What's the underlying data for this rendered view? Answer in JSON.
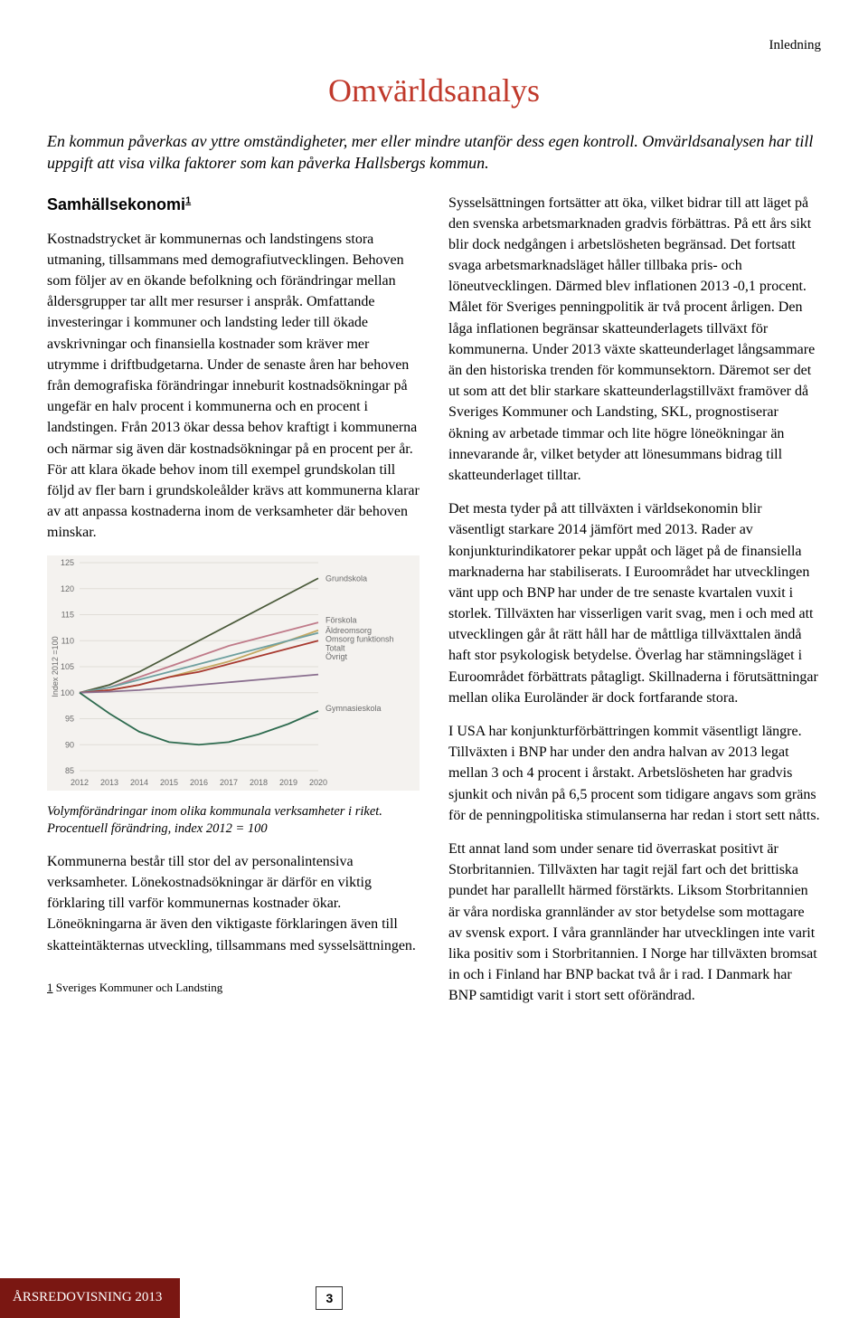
{
  "running_head": "Inledning",
  "title": "Omvärldsanalys",
  "title_color": "#c0392b",
  "lede": "En kommun påverkas av yttre omständigheter, mer eller mindre utanför dess egen kontroll. Omvärldsanalysen har till uppgift att visa vilka faktorer som kan påverka Hallsbergs kommun.",
  "section_heading": "Samhällsekonomi",
  "section_heading_super": "1",
  "left_paragraphs": [
    "Kostnadstrycket är kommunernas och landstingens stora utmaning, tillsammans med demografiutvecklingen. Behoven som följer av en ökande befolkning och förändringar mellan åldersgrupper tar allt mer resurser i anspråk. Omfattande investeringar i kommuner och landsting leder till ökade avskrivningar och finansiella kostnader som kräver mer utrymme i driftbudgetarna. Under de senaste åren har behoven från demografiska förändringar inneburit kostnadsökningar på ungefär en halv procent i kommunerna och en procent i landstingen. Från 2013 ökar dessa behov kraftigt i kommunerna och närmar sig även där kostnadsökningar på en procent per år. För att klara ökade behov inom till exempel grundskolan till följd av fler barn i grundskoleålder krävs att kommunerna klarar av att anpassa kostnaderna inom de verksamheter där behoven minskar."
  ],
  "chart_caption": "Volymförändringar inom olika kommunala verksamheter i riket. Procentuell förändring, index 2012 = 100",
  "left_paragraphs_after": [
    "Kommunerna består till stor del av personalintensiva verksamheter. Lönekostnadsökningar är därför en viktig förklaring till varför kommunernas kostnader ökar. Löneökningarna är även den viktigaste förklaringen även till skatteintäkternas utveckling, tillsammans med sysselsättningen."
  ],
  "right_paragraphs": [
    "Sysselsättningen fortsätter att öka, vilket bidrar till att läget på den svenska arbetsmarknaden gradvis förbättras. På ett års sikt blir dock nedgången i arbetslösheten begränsad. Det fortsatt svaga arbetsmarknadsläget håller tillbaka pris- och löneutvecklingen. Därmed blev inflationen 2013 -0,1 procent. Målet för Sveriges penningpolitik är två procent årligen. Den låga inflationen begränsar skatteunderlagets tillväxt för kommunerna. Under 2013 växte skatteunderlaget långsammare än den historiska trenden för kommunsektorn. Däremot ser det ut som att det blir starkare skatteunderlagstillväxt framöver då Sveriges Kommuner och Landsting, SKL, prognostiserar ökning av arbetade timmar och lite högre löneökningar än innevarande år, vilket betyder att lönesummans bidrag till skatteunderlaget tilltar.",
    "Det mesta tyder på att tillväxten i världsekonomin blir väsentligt starkare 2014 jämfört med 2013. Rader av konjunkturindikatorer pekar uppåt och läget på de finansiella marknaderna har stabiliserats. I Euroområdet har utvecklingen vänt upp och BNP har under de tre senaste kvartalen vuxit i storlek. Tillväxten har visserligen varit svag, men i och med att utvecklingen går åt rätt håll har de måttliga tillväxttalen ändå haft stor psykologisk betydelse. Överlag har stämningsläget i Euroområdet förbättrats påtagligt. Skillnaderna i förutsättningar mellan olika Euroländer är dock fortfarande stora.",
    "I USA har konjunkturförbättringen kommit väsentligt längre. Tillväxten i BNP har under den andra halvan av 2013 legat mellan 3 och 4 procent i årstakt. Arbetslösheten har gradvis sjunkit och nivån på 6,5 procent som tidigare angavs som gräns för de penningpolitiska stimulanserna har redan i stort sett nåtts.",
    "Ett annat land som under senare tid överraskat positivt är Storbritannien. Tillväxten har tagit rejäl fart och det brittiska pundet har parallellt härmed förstärkts. Liksom Storbritannien är våra nordiska grannländer av stor betydelse som mottagare av svensk export. I våra grannländer har utvecklingen inte varit lika positiv som i Storbritannien. I Norge har tillväxten bromsat in och i Finland har BNP backat två år i rad. I Danmark har BNP samtidigt varit i stort sett oförändrad."
  ],
  "footnote_num": "1",
  "footnote_text": "Sveriges Kommuner och Landsting",
  "footer_label": "ÅRSREDOVISNING 2013",
  "footer_bg": "#7a1712",
  "page_number": "3",
  "chart": {
    "type": "line",
    "background_color": "#f4f2ef",
    "grid_color": "#e0ddd7",
    "text_color": "#6b6b6b",
    "y_axis_label": "Index 2012 =100",
    "label_fontsize": 9,
    "tick_fontsize": 9,
    "x_categories": [
      "2012",
      "2013",
      "2014",
      "2015",
      "2016",
      "2017",
      "2018",
      "2019",
      "2020"
    ],
    "ylim": [
      85,
      125
    ],
    "ytick_step": 5,
    "series": [
      {
        "name": "Grundskola",
        "color": "#4a5a3a",
        "values": [
          100,
          101.5,
          104,
          107,
          110,
          113,
          116,
          119,
          122
        ]
      },
      {
        "name": "Förskola",
        "color": "#c07b8a",
        "values": [
          100,
          101,
          103,
          105,
          107,
          109,
          110.5,
          112,
          113.5
        ]
      },
      {
        "name": "Äldreomsorg",
        "color": "#c4a862",
        "values": [
          100,
          100.5,
          101.5,
          103,
          104.5,
          106,
          108,
          110,
          112
        ]
      },
      {
        "name": "Omsorg funktionsh",
        "color": "#6fa0a0",
        "values": [
          100,
          101,
          102.5,
          104,
          105.5,
          107,
          108.5,
          110,
          111.5
        ]
      },
      {
        "name": "Totalt",
        "color": "#a83a30",
        "values": [
          100,
          100.5,
          101.5,
          103,
          104,
          105.5,
          107,
          108.5,
          110
        ]
      },
      {
        "name": "Övrigt",
        "color": "#8a6f8f",
        "values": [
          100,
          100.2,
          100.5,
          101,
          101.5,
          102,
          102.5,
          103,
          103.5
        ]
      },
      {
        "name": "Gymnasieskola",
        "color": "#2e6b4f",
        "values": [
          100,
          96,
          92.5,
          90.5,
          90,
          90.5,
          92,
          94,
          96.5
        ]
      }
    ],
    "legend_right_items": [
      {
        "label": "Grundskola",
        "color": "#4a5a3a",
        "y_index": 122
      },
      {
        "label": "",
        "color": "",
        "y_index": 0
      },
      {
        "label": "Förskola",
        "color": "#c07b8a",
        "y_index": 114
      },
      {
        "label": "Äldreomsorg",
        "color": "#c4a862",
        "y_index": 112
      },
      {
        "label": "Omsorg funktionsh",
        "color": "#6fa0a0",
        "y_index": 110.3
      },
      {
        "label": "Totalt",
        "color": "#a83a30",
        "y_index": 108.6
      },
      {
        "label": "Övrigt",
        "color": "#8a6f8f",
        "y_index": 106.9
      },
      {
        "label": "",
        "color": "",
        "y_index": 0
      },
      {
        "label": "Gymnasieskola",
        "color": "#2e6b4f",
        "y_index": 97
      }
    ],
    "line_width": 1.8
  }
}
